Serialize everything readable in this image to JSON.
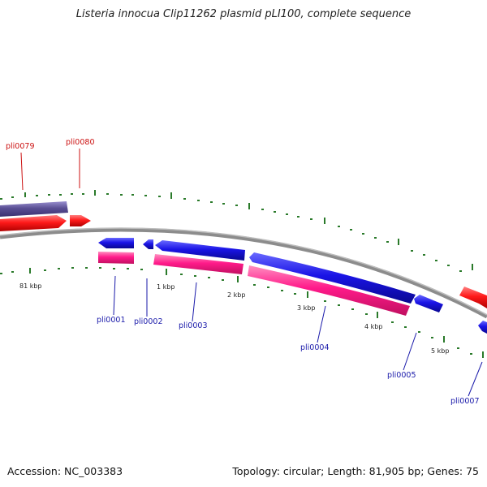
{
  "title": "Listeria innocua Clip11262 plasmid pLI100, complete sequence",
  "footer": {
    "accession": "Accession: NC_003383",
    "summary": "Topology: circular; Length: 81,905 bp; Genes: 75"
  },
  "colors": {
    "forward_gene": "#1a14e6",
    "reverse_gene": "#ff1a6e",
    "red_gene": "#ff1a1a",
    "purple_gene": "#5a4f94",
    "backbone": "#8c8c8c",
    "tick": "#2a7a2a",
    "label_blue": "#1a1aaa",
    "label_red": "#cc1111"
  },
  "scale_labels": [
    "81 kbp",
    "1 kbp",
    "2 kbp",
    "3 kbp",
    "4 kbp",
    "5 kbp"
  ],
  "gene_labels": [
    {
      "name": "pli0079",
      "color": "red"
    },
    {
      "name": "pli0080",
      "color": "red"
    },
    {
      "name": "pli0001",
      "color": "blue"
    },
    {
      "name": "pli0002",
      "color": "blue"
    },
    {
      "name": "pli0003",
      "color": "blue"
    },
    {
      "name": "pli0004",
      "color": "blue"
    },
    {
      "name": "pli0005",
      "color": "blue"
    },
    {
      "name": "pli0007",
      "color": "blue"
    }
  ]
}
